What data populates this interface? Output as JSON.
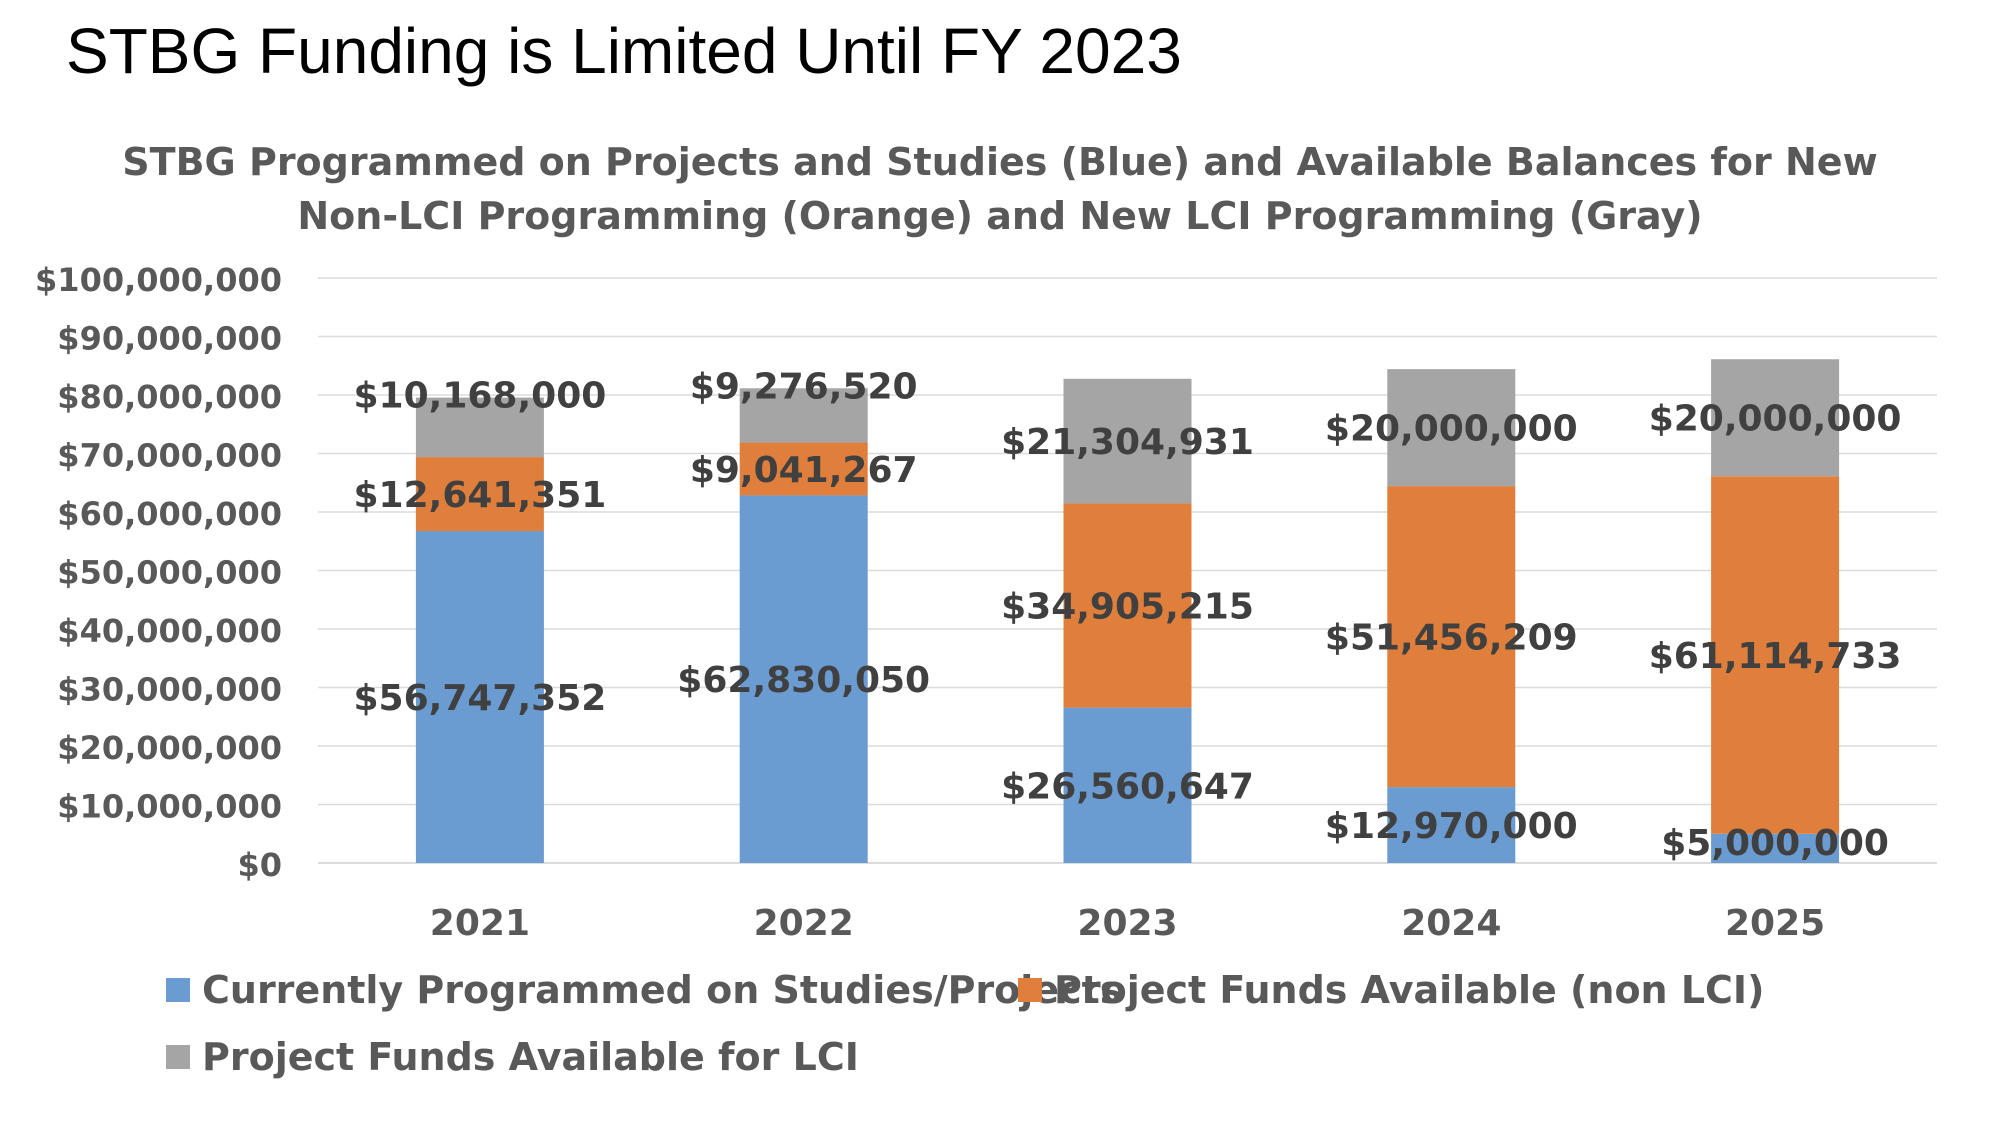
{
  "slide": {
    "title": "STBG Funding is Limited Until FY 2023"
  },
  "chart_data": {
    "type": "bar",
    "stacked": true,
    "title_lines": [
      "STBG Programmed on Projects and Studies (Blue) and Available Balances for New",
      "Non-LCI Programming (Orange) and New LCI Programming (Gray)"
    ],
    "categories": [
      "2021",
      "2022",
      "2023",
      "2024",
      "2025"
    ],
    "ylim": [
      0,
      100000000
    ],
    "yticks": [
      {
        "value": 0,
        "label": "$0"
      },
      {
        "value": 10000000,
        "label": "$10,000,000"
      },
      {
        "value": 20000000,
        "label": "$20,000,000"
      },
      {
        "value": 30000000,
        "label": "$30,000,000"
      },
      {
        "value": 40000000,
        "label": "$40,000,000"
      },
      {
        "value": 50000000,
        "label": "$50,000,000"
      },
      {
        "value": 60000000,
        "label": "$60,000,000"
      },
      {
        "value": 70000000,
        "label": "$70,000,000"
      },
      {
        "value": 80000000,
        "label": "$80,000,000"
      },
      {
        "value": 90000000,
        "label": "$90,000,000"
      },
      {
        "value": 100000000,
        "label": "$100,000,000"
      }
    ],
    "grid": true,
    "legend_position": "bottom",
    "series": [
      {
        "name": "Currently Programmed on Studies/Projects",
        "color": "#6A9BD1",
        "values": [
          56747352,
          62830050,
          26560647,
          12970000,
          5000000
        ],
        "labels": [
          "$56,747,352",
          "$62,830,050",
          "$26,560,647",
          "$12,970,000",
          "$5,000,000"
        ]
      },
      {
        "name": "Project Funds Available (non LCI)",
        "color": "#E07F3C",
        "values": [
          12641351,
          9041267,
          34905215,
          51456209,
          61114733
        ],
        "labels": [
          "$12,641,351",
          "$9,041,267",
          "$34,905,215",
          "$51,456,209",
          "$61,114,733"
        ]
      },
      {
        "name": "Project Funds Available for LCI",
        "color": "#A5A5A5",
        "values": [
          10168000,
          9276520,
          21304931,
          20000000,
          20000000
        ],
        "labels": [
          "$10,168,000",
          "$9,276,520",
          "$21,304,931",
          "$20,000,000",
          "$20,000,000"
        ]
      }
    ]
  }
}
